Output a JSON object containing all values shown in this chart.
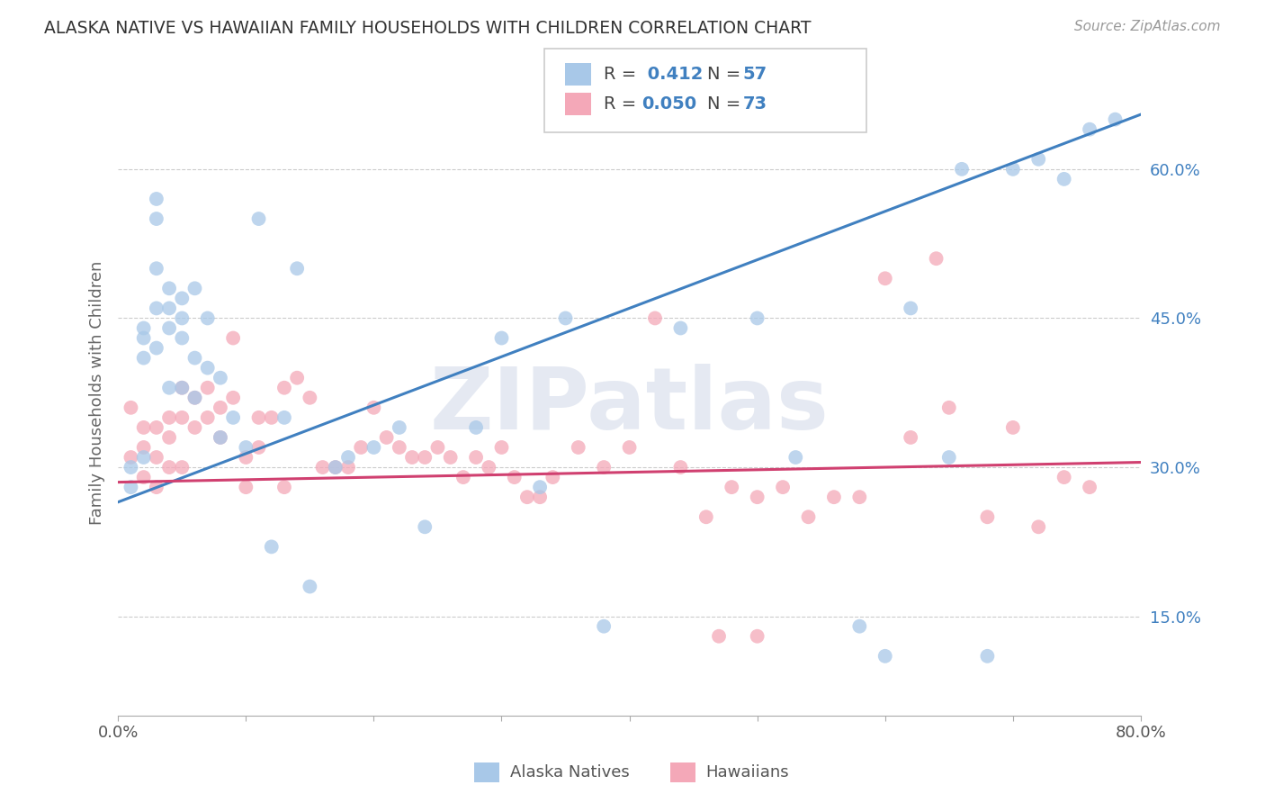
{
  "title": "ALASKA NATIVE VS HAWAIIAN FAMILY HOUSEHOLDS WITH CHILDREN CORRELATION CHART",
  "source": "Source: ZipAtlas.com",
  "ylabel": "Family Households with Children",
  "yticks": [
    0.15,
    0.3,
    0.45,
    0.6
  ],
  "ytick_labels": [
    "15.0%",
    "30.0%",
    "45.0%",
    "60.0%"
  ],
  "xlim": [
    0.0,
    0.8
  ],
  "ylim": [
    0.05,
    0.7
  ],
  "color_blue": "#a8c8e8",
  "color_pink": "#f4a8b8",
  "color_blue_line": "#4080c0",
  "color_pink_line": "#d04070",
  "watermark": "ZIPatlas",
  "alaska_x": [
    0.01,
    0.01,
    0.02,
    0.02,
    0.02,
    0.02,
    0.03,
    0.03,
    0.03,
    0.03,
    0.03,
    0.04,
    0.04,
    0.04,
    0.04,
    0.05,
    0.05,
    0.05,
    0.05,
    0.06,
    0.06,
    0.06,
    0.07,
    0.07,
    0.08,
    0.08,
    0.09,
    0.1,
    0.11,
    0.12,
    0.13,
    0.14,
    0.15,
    0.17,
    0.18,
    0.2,
    0.22,
    0.24,
    0.28,
    0.3,
    0.33,
    0.35,
    0.38,
    0.44,
    0.5,
    0.53,
    0.58,
    0.6,
    0.62,
    0.65,
    0.66,
    0.68,
    0.7,
    0.72,
    0.74,
    0.76,
    0.78
  ],
  "alaska_y": [
    0.3,
    0.28,
    0.31,
    0.44,
    0.43,
    0.41,
    0.57,
    0.55,
    0.5,
    0.46,
    0.42,
    0.48,
    0.46,
    0.44,
    0.38,
    0.47,
    0.45,
    0.43,
    0.38,
    0.48,
    0.41,
    0.37,
    0.45,
    0.4,
    0.39,
    0.33,
    0.35,
    0.32,
    0.55,
    0.22,
    0.35,
    0.5,
    0.18,
    0.3,
    0.31,
    0.32,
    0.34,
    0.24,
    0.34,
    0.43,
    0.28,
    0.45,
    0.14,
    0.44,
    0.45,
    0.31,
    0.14,
    0.11,
    0.46,
    0.31,
    0.6,
    0.11,
    0.6,
    0.61,
    0.59,
    0.64,
    0.65
  ],
  "hawaii_x": [
    0.01,
    0.01,
    0.02,
    0.02,
    0.02,
    0.03,
    0.03,
    0.03,
    0.04,
    0.04,
    0.04,
    0.05,
    0.05,
    0.05,
    0.06,
    0.06,
    0.07,
    0.07,
    0.08,
    0.08,
    0.09,
    0.09,
    0.1,
    0.1,
    0.11,
    0.11,
    0.12,
    0.13,
    0.13,
    0.14,
    0.15,
    0.16,
    0.17,
    0.18,
    0.19,
    0.2,
    0.21,
    0.22,
    0.23,
    0.24,
    0.25,
    0.26,
    0.27,
    0.28,
    0.29,
    0.3,
    0.31,
    0.32,
    0.33,
    0.34,
    0.36,
    0.38,
    0.4,
    0.42,
    0.44,
    0.46,
    0.48,
    0.5,
    0.52,
    0.54,
    0.56,
    0.58,
    0.62,
    0.65,
    0.68,
    0.7,
    0.72,
    0.74,
    0.76,
    0.47,
    0.5,
    0.6,
    0.64
  ],
  "hawaii_y": [
    0.36,
    0.31,
    0.34,
    0.29,
    0.32,
    0.34,
    0.31,
    0.28,
    0.35,
    0.33,
    0.3,
    0.38,
    0.35,
    0.3,
    0.37,
    0.34,
    0.38,
    0.35,
    0.36,
    0.33,
    0.43,
    0.37,
    0.31,
    0.28,
    0.35,
    0.32,
    0.35,
    0.28,
    0.38,
    0.39,
    0.37,
    0.3,
    0.3,
    0.3,
    0.32,
    0.36,
    0.33,
    0.32,
    0.31,
    0.31,
    0.32,
    0.31,
    0.29,
    0.31,
    0.3,
    0.32,
    0.29,
    0.27,
    0.27,
    0.29,
    0.32,
    0.3,
    0.32,
    0.45,
    0.3,
    0.25,
    0.28,
    0.27,
    0.28,
    0.25,
    0.27,
    0.27,
    0.33,
    0.36,
    0.25,
    0.34,
    0.24,
    0.29,
    0.28,
    0.13,
    0.13,
    0.49,
    0.51
  ],
  "r_alaska": 0.412,
  "n_alaska": 57,
  "r_hawaii": 0.05,
  "n_hawaii": 73,
  "line_alaska_x0": 0.0,
  "line_alaska_y0": 0.265,
  "line_alaska_x1": 0.8,
  "line_alaska_y1": 0.655,
  "line_hawaii_x0": 0.0,
  "line_hawaii_y0": 0.285,
  "line_hawaii_x1": 0.8,
  "line_hawaii_y1": 0.305
}
